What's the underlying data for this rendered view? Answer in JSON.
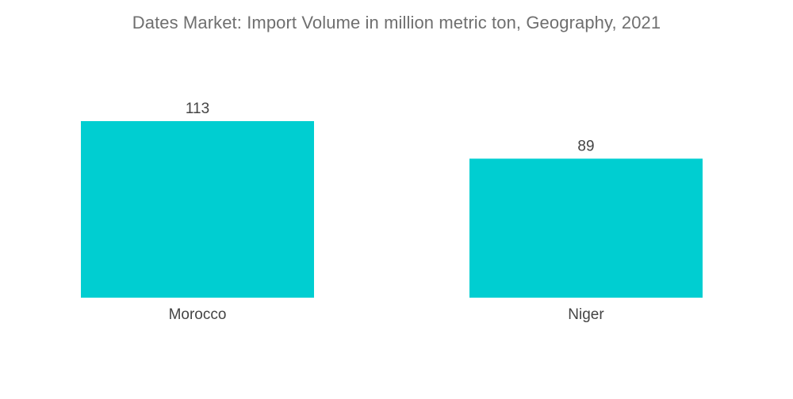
{
  "chart_data": {
    "type": "bar",
    "title": "Dates Market: Import Volume in million metric ton, Geography, 2021",
    "categories": [
      "Morocco",
      "Niger"
    ],
    "values": [
      113,
      89
    ],
    "data_labels": [
      "113",
      "89"
    ],
    "xlabel": "",
    "ylabel": "",
    "ylim": [
      0,
      113
    ],
    "grid": false,
    "legend": "none",
    "bar_color": "#00CED1"
  }
}
